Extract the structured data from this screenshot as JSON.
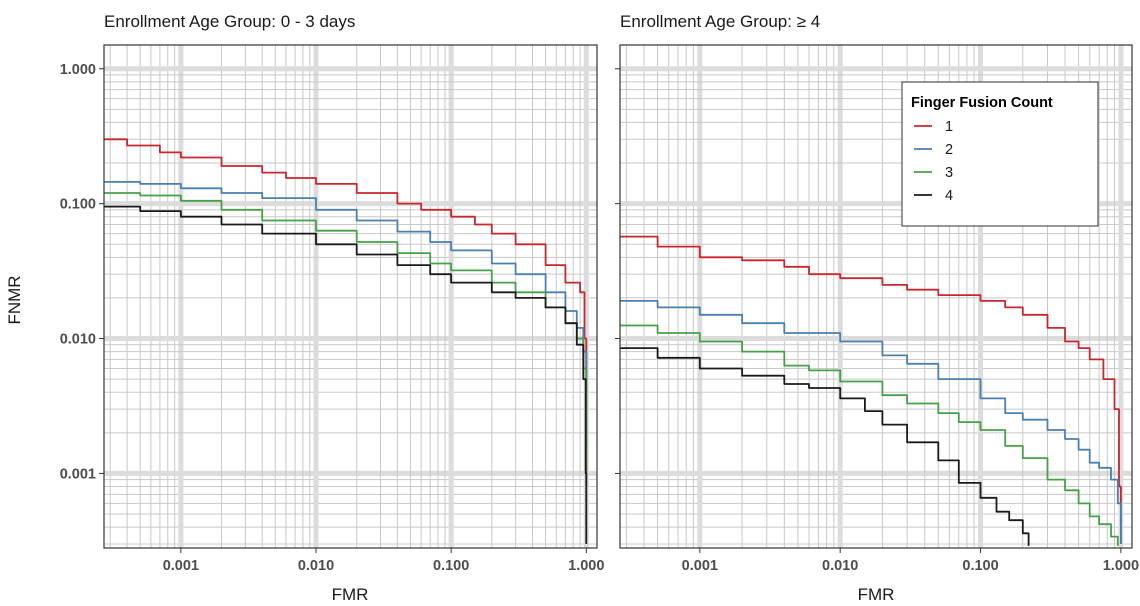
{
  "chart_data": [
    {
      "type": "line",
      "title": "Enrollment Age Group: 0 - 3 days",
      "xlabel": "FMR",
      "ylabel": "FNMR",
      "xscale": "log",
      "yscale": "log",
      "xlim": [
        0.00027,
        1.2
      ],
      "ylim": [
        0.00028,
        1.5
      ],
      "xticks": [
        0.001,
        0.01,
        0.1,
        1
      ],
      "xtick_labels": [
        "0.001",
        "0.010",
        "0.100",
        "1.000"
      ],
      "yticks": [
        0.001,
        0.01,
        0.1,
        1
      ],
      "ytick_labels": [
        "0.001",
        "0.010",
        "0.100",
        "1.000"
      ],
      "grid": true,
      "series": [
        {
          "name": "1",
          "color": "#c9262e",
          "x": [
            0.00027,
            0.0004,
            0.0007,
            0.001,
            0.002,
            0.004,
            0.006,
            0.01,
            0.02,
            0.04,
            0.06,
            0.1,
            0.15,
            0.2,
            0.3,
            0.5,
            0.7,
            0.9,
            0.97,
            1.0
          ],
          "y": [
            0.3,
            0.27,
            0.24,
            0.22,
            0.19,
            0.17,
            0.155,
            0.14,
            0.12,
            0.1,
            0.09,
            0.08,
            0.07,
            0.06,
            0.05,
            0.035,
            0.026,
            0.022,
            0.01,
            0.001
          ]
        },
        {
          "name": "2",
          "color": "#4a7fb0",
          "x": [
            0.00027,
            0.0005,
            0.001,
            0.002,
            0.004,
            0.01,
            0.02,
            0.04,
            0.07,
            0.1,
            0.2,
            0.3,
            0.5,
            0.7,
            0.85,
            0.95,
            1.0
          ],
          "y": [
            0.145,
            0.14,
            0.13,
            0.12,
            0.11,
            0.09,
            0.075,
            0.062,
            0.052,
            0.045,
            0.036,
            0.03,
            0.022,
            0.016,
            0.012,
            0.008,
            0.0015
          ]
        },
        {
          "name": "3",
          "color": "#47a049",
          "x": [
            0.00027,
            0.0005,
            0.001,
            0.002,
            0.004,
            0.01,
            0.02,
            0.04,
            0.07,
            0.1,
            0.2,
            0.3,
            0.5,
            0.7,
            0.85,
            0.95,
            1.0
          ],
          "y": [
            0.12,
            0.115,
            0.105,
            0.09,
            0.075,
            0.063,
            0.052,
            0.043,
            0.036,
            0.032,
            0.026,
            0.022,
            0.017,
            0.013,
            0.01,
            0.006,
            0.0008
          ]
        },
        {
          "name": "4",
          "color": "#1a1a1a",
          "x": [
            0.00027,
            0.0005,
            0.001,
            0.002,
            0.004,
            0.01,
            0.02,
            0.04,
            0.07,
            0.1,
            0.2,
            0.3,
            0.5,
            0.7,
            0.85,
            0.95,
            0.99,
            1.0
          ],
          "y": [
            0.095,
            0.088,
            0.08,
            0.07,
            0.06,
            0.05,
            0.042,
            0.035,
            0.03,
            0.026,
            0.022,
            0.02,
            0.017,
            0.013,
            0.009,
            0.005,
            0.001,
            0.0003
          ]
        }
      ]
    },
    {
      "type": "line",
      "title": "Enrollment Age Group: ≥ 4",
      "xlabel": "FMR",
      "ylabel": "",
      "xscale": "log",
      "yscale": "log",
      "xlim": [
        0.00027,
        1.2
      ],
      "ylim": [
        0.00028,
        1.5
      ],
      "xticks": [
        0.001,
        0.01,
        0.1,
        1
      ],
      "xtick_labels": [
        "0.001",
        "0.010",
        "0.100",
        "1.000"
      ],
      "yticks": [
        0.001,
        0.01,
        0.1,
        1
      ],
      "grid": true,
      "legend": {
        "title": "Finger Fusion Count",
        "position": "top-right"
      },
      "series": [
        {
          "name": "1",
          "color": "#c9262e",
          "x": [
            0.00027,
            0.0005,
            0.001,
            0.002,
            0.004,
            0.006,
            0.01,
            0.02,
            0.03,
            0.05,
            0.1,
            0.15,
            0.2,
            0.3,
            0.4,
            0.5,
            0.6,
            0.75,
            0.9,
            0.97,
            1.0
          ],
          "y": [
            0.057,
            0.048,
            0.04,
            0.038,
            0.034,
            0.03,
            0.028,
            0.025,
            0.023,
            0.021,
            0.019,
            0.017,
            0.015,
            0.012,
            0.0095,
            0.0085,
            0.007,
            0.005,
            0.003,
            0.0008,
            0.0003
          ]
        },
        {
          "name": "2",
          "color": "#4a7fb0",
          "x": [
            0.00027,
            0.0005,
            0.001,
            0.002,
            0.004,
            0.01,
            0.02,
            0.03,
            0.05,
            0.1,
            0.15,
            0.2,
            0.3,
            0.4,
            0.5,
            0.6,
            0.7,
            0.85,
            0.95,
            1.0
          ],
          "y": [
            0.019,
            0.017,
            0.015,
            0.013,
            0.011,
            0.0095,
            0.0075,
            0.0065,
            0.005,
            0.0036,
            0.0028,
            0.0025,
            0.0021,
            0.0018,
            0.0015,
            0.0012,
            0.0011,
            0.0009,
            0.0006,
            0.0003
          ]
        },
        {
          "name": "3",
          "color": "#47a049",
          "x": [
            0.00027,
            0.0005,
            0.001,
            0.002,
            0.004,
            0.006,
            0.01,
            0.02,
            0.03,
            0.05,
            0.07,
            0.1,
            0.15,
            0.2,
            0.3,
            0.4,
            0.5,
            0.6,
            0.7,
            0.85,
            0.95
          ],
          "y": [
            0.0125,
            0.011,
            0.0095,
            0.008,
            0.0063,
            0.0058,
            0.0048,
            0.0038,
            0.0033,
            0.0028,
            0.0024,
            0.0021,
            0.0016,
            0.0013,
            0.0009,
            0.00075,
            0.0006,
            0.00048,
            0.00042,
            0.00034,
            0.00029
          ]
        },
        {
          "name": "4",
          "color": "#1a1a1a",
          "x": [
            0.00027,
            0.0005,
            0.001,
            0.002,
            0.004,
            0.006,
            0.01,
            0.015,
            0.02,
            0.03,
            0.05,
            0.07,
            0.1,
            0.13,
            0.16,
            0.2,
            0.22
          ],
          "y": [
            0.0085,
            0.0072,
            0.006,
            0.0053,
            0.0046,
            0.0043,
            0.0036,
            0.0029,
            0.0023,
            0.0017,
            0.00125,
            0.00085,
            0.00066,
            0.00052,
            0.00045,
            0.00036,
            0.00029
          ]
        }
      ]
    }
  ]
}
